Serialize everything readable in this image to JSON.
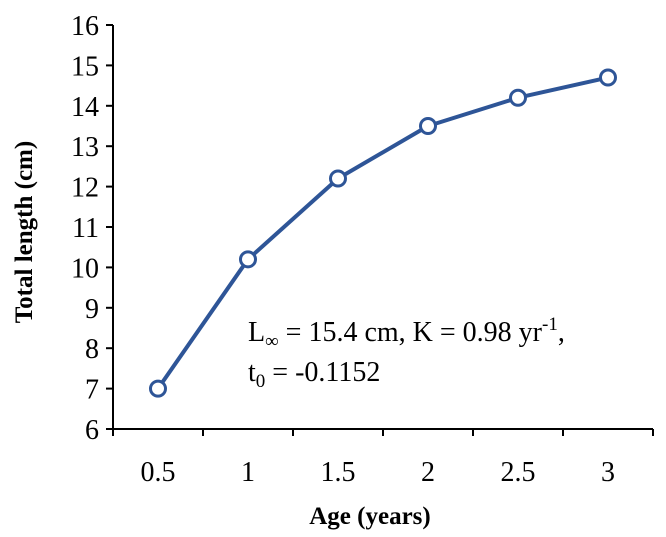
{
  "chart_data": {
    "type": "line",
    "categories": [
      "0.5",
      "1",
      "1.5",
      "2",
      "2.5",
      "3"
    ],
    "x": [
      0.5,
      1,
      1.5,
      2,
      2.5,
      3
    ],
    "series": [
      {
        "values": [
          7.0,
          10.2,
          12.2,
          13.5,
          14.2,
          14.7
        ]
      }
    ],
    "title": "",
    "xlabel": "Age (years)",
    "ylabel": "Total length (cm)",
    "ylim": [
      6,
      16
    ],
    "yticks": [
      6,
      7,
      8,
      9,
      10,
      11,
      12,
      13,
      14,
      15,
      16
    ],
    "grid": false,
    "legend": "none",
    "annotation": {
      "line1_L": "L",
      "line1_inf": "∞",
      "line1_mid": " = 15.4 cm, K = 0.98 yr",
      "line1_sup": "-1",
      "line1_end": ",",
      "line2_t": "t",
      "line2_sub": "0",
      "line2_end": " = -0.1152"
    },
    "colors": {
      "line": "#2E5597",
      "marker_fill": "#ffffff",
      "axis": "#000000"
    }
  }
}
